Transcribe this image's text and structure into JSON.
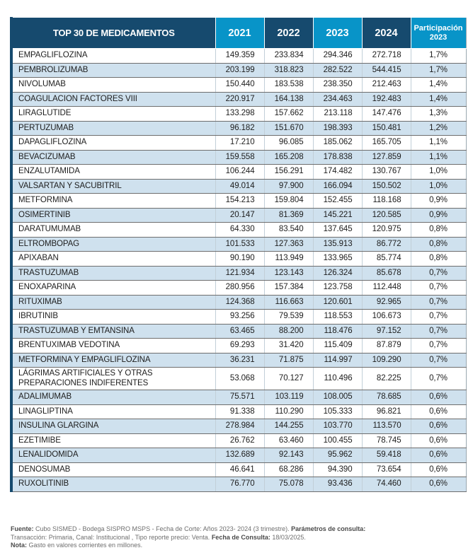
{
  "chart_data": {
    "type": "table",
    "title": "TOP 30 DE MEDICAMENTOS",
    "columns": [
      "2021",
      "2022",
      "2023",
      "2024"
    ],
    "participation_column": "Participación 2023",
    "rows": [
      {
        "name": "EMPAGLIFLOZINA",
        "values": [
          "149.359",
          "233.834",
          "294.346",
          "272.718"
        ],
        "share": "1,7%"
      },
      {
        "name": "PEMBROLIZUMAB",
        "values": [
          "203.199",
          "318.823",
          "282.522",
          "544.415"
        ],
        "share": "1,7%"
      },
      {
        "name": "NIVOLUMAB",
        "values": [
          "150.440",
          "183.538",
          "238.350",
          "212.463"
        ],
        "share": "1,4%"
      },
      {
        "name": "COAGULACION FACTORES VIII",
        "values": [
          "220.917",
          "164.138",
          "234.463",
          "192.483"
        ],
        "share": "1,4%"
      },
      {
        "name": "LIRAGLUTIDE",
        "values": [
          "133.298",
          "157.662",
          "213.118",
          "147.476"
        ],
        "share": "1,3%"
      },
      {
        "name": "PERTUZUMAB",
        "values": [
          "96.182",
          "151.670",
          "198.393",
          "150.481"
        ],
        "share": "1,2%"
      },
      {
        "name": "DAPAGLIFLOZINA",
        "values": [
          "17.210",
          "96.085",
          "185.062",
          "165.705"
        ],
        "share": "1,1%"
      },
      {
        "name": "BEVACIZUMAB",
        "values": [
          "159.558",
          "165.208",
          "178.838",
          "127.859"
        ],
        "share": "1,1%"
      },
      {
        "name": "ENZALUTAMIDA",
        "values": [
          "106.244",
          "156.291",
          "174.482",
          "130.767"
        ],
        "share": "1,0%"
      },
      {
        "name": "VALSARTAN Y SACUBITRIL",
        "values": [
          "49.014",
          "97.900",
          "166.094",
          "150.502"
        ],
        "share": "1,0%"
      },
      {
        "name": "METFORMINA",
        "values": [
          "154.213",
          "159.804",
          "152.455",
          "118.168"
        ],
        "share": "0,9%"
      },
      {
        "name": "OSIMERTINIB",
        "values": [
          "20.147",
          "81.369",
          "145.221",
          "120.585"
        ],
        "share": "0,9%"
      },
      {
        "name": "DARATUMUMAB",
        "values": [
          "64.330",
          "83.540",
          "137.645",
          "120.975"
        ],
        "share": "0,8%"
      },
      {
        "name": "ELTROMBOPAG",
        "values": [
          "101.533",
          "127.363",
          "135.913",
          "86.772"
        ],
        "share": "0,8%"
      },
      {
        "name": "APIXABAN",
        "values": [
          "90.190",
          "113.949",
          "133.965",
          "85.774"
        ],
        "share": "0,8%"
      },
      {
        "name": "TRASTUZUMAB",
        "values": [
          "121.934",
          "123.143",
          "126.324",
          "85.678"
        ],
        "share": "0,7%"
      },
      {
        "name": "ENOXAPARINA",
        "values": [
          "280.956",
          "157.384",
          "123.758",
          "112.448"
        ],
        "share": "0,7%"
      },
      {
        "name": "RITUXIMAB",
        "values": [
          "124.368",
          "116.663",
          "120.601",
          "92.965"
        ],
        "share": "0,7%"
      },
      {
        "name": "IBRUTINIB",
        "values": [
          "93.256",
          "79.539",
          "118.553",
          "106.673"
        ],
        "share": "0,7%"
      },
      {
        "name": "TRASTUZUMAB Y EMTANSINA",
        "values": [
          "63.465",
          "88.200",
          "118.476",
          "97.152"
        ],
        "share": "0,7%"
      },
      {
        "name": "BRENTUXIMAB VEDOTINA",
        "values": [
          "69.293",
          "31.420",
          "115.409",
          "87.879"
        ],
        "share": "0,7%"
      },
      {
        "name": "METFORMINA Y EMPAGLIFLOZINA",
        "values": [
          "36.231",
          "71.875",
          "114.997",
          "109.290"
        ],
        "share": "0,7%"
      },
      {
        "name": "LÁGRIMAS ARTIFICIALES Y OTRAS PREPARACIONES INDIFERENTES",
        "values": [
          "53.068",
          "70.127",
          "110.496",
          "82.225"
        ],
        "share": "0,7%"
      },
      {
        "name": "ADALIMUMAB",
        "values": [
          "75.571",
          "103.119",
          "108.005",
          "78.685"
        ],
        "share": "0,6%"
      },
      {
        "name": "LINAGLIPTINA",
        "values": [
          "91.338",
          "110.290",
          "105.333",
          "96.821"
        ],
        "share": "0,6%"
      },
      {
        "name": "INSULINA GLARGINA",
        "values": [
          "278.984",
          "144.255",
          "103.770",
          "113.570"
        ],
        "share": "0,6%"
      },
      {
        "name": "EZETIMIBE",
        "values": [
          "26.762",
          "63.460",
          "100.455",
          "78.745"
        ],
        "share": "0,6%"
      },
      {
        "name": "LENALIDOMIDA",
        "values": [
          "132.689",
          "92.143",
          "95.962",
          "59.418"
        ],
        "share": "0,6%"
      },
      {
        "name": "DENOSUMAB",
        "values": [
          "46.641",
          "68.286",
          "94.390",
          "73.654"
        ],
        "share": "0,6%"
      },
      {
        "name": "RUXOLITINIB",
        "values": [
          "76.770",
          "75.078",
          "93.436",
          "74.460"
        ],
        "share": "0,6%"
      }
    ]
  },
  "footer": {
    "paragraphs": [
      [
        {
          "text": "Fuente:",
          "bold": true
        },
        {
          "text": " Cubo SISMED - Bodega SISPRO MSPS - Fecha de Corte: Años 2023- 2024 (3 trimestre). ",
          "bold": false
        },
        {
          "text": "Parámetros de consulta:",
          "bold": true
        },
        {
          "text": " Transacción: Primaria, Canal: Institucional , Tipo reporte precio: Venta. ",
          "bold": false
        },
        {
          "text": "Fecha de Consulta:",
          "bold": true
        },
        {
          "text": " 18/03/2025.",
          "bold": false
        }
      ],
      [
        {
          "text": "Nota:",
          "bold": true
        },
        {
          "text": " Gasto en valores corrientes en millones.",
          "bold": false
        }
      ]
    ]
  },
  "colors": {
    "header_dark_navy": "#164A6E",
    "header_light_blue": "#0894C8",
    "row_stripe_blue": "#CFE1EE",
    "row_border_gray": "#6E6E6E",
    "header_text": "#FFFFFF"
  }
}
